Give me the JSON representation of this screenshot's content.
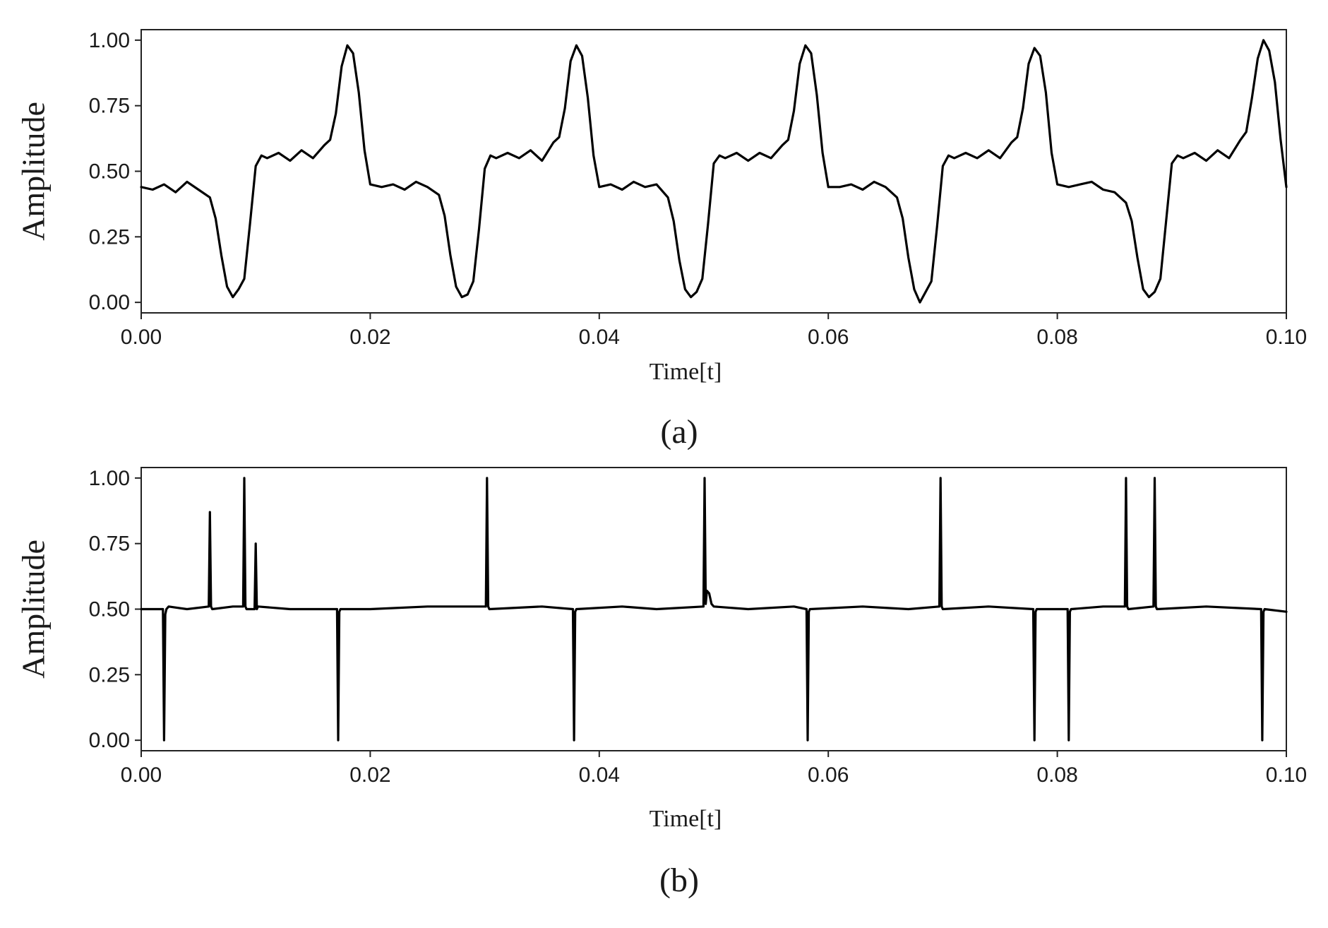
{
  "chart_data": [
    {
      "panel_label": "(a)",
      "type": "line",
      "xlabel": "Time[t]",
      "ylabel": "Amplitude",
      "xlim": [
        0.0,
        0.1
      ],
      "ylim": [
        -0.04,
        1.04
      ],
      "xticks": [
        "0.00",
        "0.02",
        "0.04",
        "0.06",
        "0.08",
        "0.10"
      ],
      "yticks": [
        "0.00",
        "0.25",
        "0.50",
        "0.75",
        "1.00"
      ],
      "grid": false,
      "series": [
        {
          "color": "#000000",
          "x": [
            0.0,
            0.001,
            0.002,
            0.003,
            0.004,
            0.005,
            0.006,
            0.0065,
            0.007,
            0.0075,
            0.008,
            0.0085,
            0.009,
            0.0095,
            0.01,
            0.0105,
            0.011,
            0.012,
            0.013,
            0.014,
            0.015,
            0.016,
            0.0165,
            0.017,
            0.0175,
            0.018,
            0.0185,
            0.019,
            0.0195,
            0.02,
            0.021,
            0.022,
            0.023,
            0.024,
            0.025,
            0.026,
            0.0265,
            0.027,
            0.0275,
            0.028,
            0.0285,
            0.029,
            0.0295,
            0.03,
            0.0305,
            0.031,
            0.032,
            0.033,
            0.034,
            0.035,
            0.036,
            0.0365,
            0.037,
            0.0375,
            0.038,
            0.0385,
            0.039,
            0.0395,
            0.04,
            0.041,
            0.042,
            0.043,
            0.044,
            0.045,
            0.046,
            0.0465,
            0.047,
            0.0475,
            0.048,
            0.0485,
            0.049,
            0.0495,
            0.05,
            0.0505,
            0.051,
            0.052,
            0.053,
            0.054,
            0.055,
            0.056,
            0.0565,
            0.057,
            0.0575,
            0.058,
            0.0585,
            0.059,
            0.0595,
            0.06,
            0.061,
            0.062,
            0.063,
            0.064,
            0.065,
            0.066,
            0.0665,
            0.067,
            0.0675,
            0.068,
            0.0685,
            0.069,
            0.0695,
            0.07,
            0.0705,
            0.071,
            0.072,
            0.073,
            0.074,
            0.075,
            0.076,
            0.0765,
            0.077,
            0.0775,
            0.078,
            0.0785,
            0.079,
            0.0795,
            0.08,
            0.081,
            0.082,
            0.083,
            0.084,
            0.085,
            0.086,
            0.0865,
            0.087,
            0.0875,
            0.088,
            0.0885,
            0.089,
            0.0895,
            0.09,
            0.0905,
            0.091,
            0.092,
            0.093,
            0.094,
            0.095,
            0.096,
            0.0965,
            0.097,
            0.0975,
            0.098,
            0.0985,
            0.099,
            0.0995,
            0.1
          ],
          "y": [
            0.44,
            0.43,
            0.45,
            0.42,
            0.46,
            0.43,
            0.4,
            0.32,
            0.18,
            0.06,
            0.02,
            0.05,
            0.09,
            0.3,
            0.52,
            0.56,
            0.55,
            0.57,
            0.54,
            0.58,
            0.55,
            0.6,
            0.62,
            0.72,
            0.9,
            0.98,
            0.95,
            0.8,
            0.58,
            0.45,
            0.44,
            0.45,
            0.43,
            0.46,
            0.44,
            0.41,
            0.33,
            0.18,
            0.06,
            0.02,
            0.03,
            0.08,
            0.28,
            0.51,
            0.56,
            0.55,
            0.57,
            0.55,
            0.58,
            0.54,
            0.61,
            0.63,
            0.74,
            0.92,
            0.98,
            0.94,
            0.78,
            0.56,
            0.44,
            0.45,
            0.43,
            0.46,
            0.44,
            0.45,
            0.4,
            0.31,
            0.16,
            0.05,
            0.02,
            0.04,
            0.09,
            0.3,
            0.53,
            0.56,
            0.55,
            0.57,
            0.54,
            0.57,
            0.55,
            0.6,
            0.62,
            0.73,
            0.91,
            0.98,
            0.95,
            0.79,
            0.57,
            0.44,
            0.44,
            0.45,
            0.43,
            0.46,
            0.44,
            0.4,
            0.32,
            0.17,
            0.05,
            0.0,
            0.04,
            0.08,
            0.29,
            0.52,
            0.56,
            0.55,
            0.57,
            0.55,
            0.58,
            0.55,
            0.61,
            0.63,
            0.74,
            0.91,
            0.97,
            0.94,
            0.8,
            0.57,
            0.45,
            0.44,
            0.45,
            0.46,
            0.43,
            0.42,
            0.38,
            0.31,
            0.17,
            0.05,
            0.02,
            0.04,
            0.09,
            0.31,
            0.53,
            0.56,
            0.55,
            0.57,
            0.54,
            0.58,
            0.55,
            0.62,
            0.65,
            0.78,
            0.93,
            1.0,
            0.96,
            0.84,
            0.62,
            0.44
          ]
        }
      ]
    },
    {
      "panel_label": "(b)",
      "type": "line",
      "xlabel": "Time[t]",
      "ylabel": "Amplitude",
      "xlim": [
        0.0,
        0.1
      ],
      "ylim": [
        -0.04,
        1.04
      ],
      "xticks": [
        "0.00",
        "0.02",
        "0.04",
        "0.06",
        "0.08",
        "0.10"
      ],
      "yticks": [
        "0.00",
        "0.25",
        "0.50",
        "0.75",
        "1.00"
      ],
      "grid": false,
      "series": [
        {
          "color": "#000000",
          "x": [
            0.0,
            0.0019,
            0.002,
            0.0021,
            0.0022,
            0.0024,
            0.004,
            0.0059,
            0.006,
            0.0061,
            0.0062,
            0.008,
            0.0089,
            0.009,
            0.0091,
            0.0092,
            0.0099,
            0.01,
            0.0101,
            0.0102,
            0.013,
            0.0171,
            0.0172,
            0.0173,
            0.0174,
            0.02,
            0.025,
            0.0301,
            0.0302,
            0.0303,
            0.0304,
            0.035,
            0.0377,
            0.0378,
            0.0379,
            0.038,
            0.042,
            0.045,
            0.0491,
            0.0492,
            0.0493,
            0.0494,
            0.0496,
            0.0498,
            0.05,
            0.053,
            0.057,
            0.0581,
            0.0582,
            0.0583,
            0.0584,
            0.063,
            0.067,
            0.0697,
            0.0698,
            0.0699,
            0.07,
            0.074,
            0.0779,
            0.078,
            0.0781,
            0.0782,
            0.0809,
            0.081,
            0.0811,
            0.0812,
            0.084,
            0.0859,
            0.086,
            0.0861,
            0.0862,
            0.0884,
            0.0885,
            0.0886,
            0.0887,
            0.093,
            0.0978,
            0.0979,
            0.098,
            0.0981,
            0.1
          ],
          "y": [
            0.5,
            0.5,
            0.0,
            0.48,
            0.5,
            0.51,
            0.5,
            0.51,
            0.87,
            0.51,
            0.5,
            0.51,
            0.51,
            1.0,
            0.51,
            0.5,
            0.5,
            0.75,
            0.5,
            0.51,
            0.5,
            0.5,
            0.0,
            0.49,
            0.5,
            0.5,
            0.51,
            0.51,
            1.0,
            0.51,
            0.5,
            0.51,
            0.5,
            0.0,
            0.49,
            0.5,
            0.51,
            0.5,
            0.51,
            1.0,
            0.52,
            0.57,
            0.56,
            0.52,
            0.51,
            0.5,
            0.51,
            0.5,
            0.0,
            0.49,
            0.5,
            0.51,
            0.5,
            0.51,
            1.0,
            0.51,
            0.5,
            0.51,
            0.5,
            0.0,
            0.49,
            0.5,
            0.5,
            0.0,
            0.49,
            0.5,
            0.51,
            0.51,
            1.0,
            0.51,
            0.5,
            0.51,
            1.0,
            0.51,
            0.5,
            0.51,
            0.5,
            0.0,
            0.49,
            0.5,
            0.49
          ]
        }
      ]
    }
  ]
}
